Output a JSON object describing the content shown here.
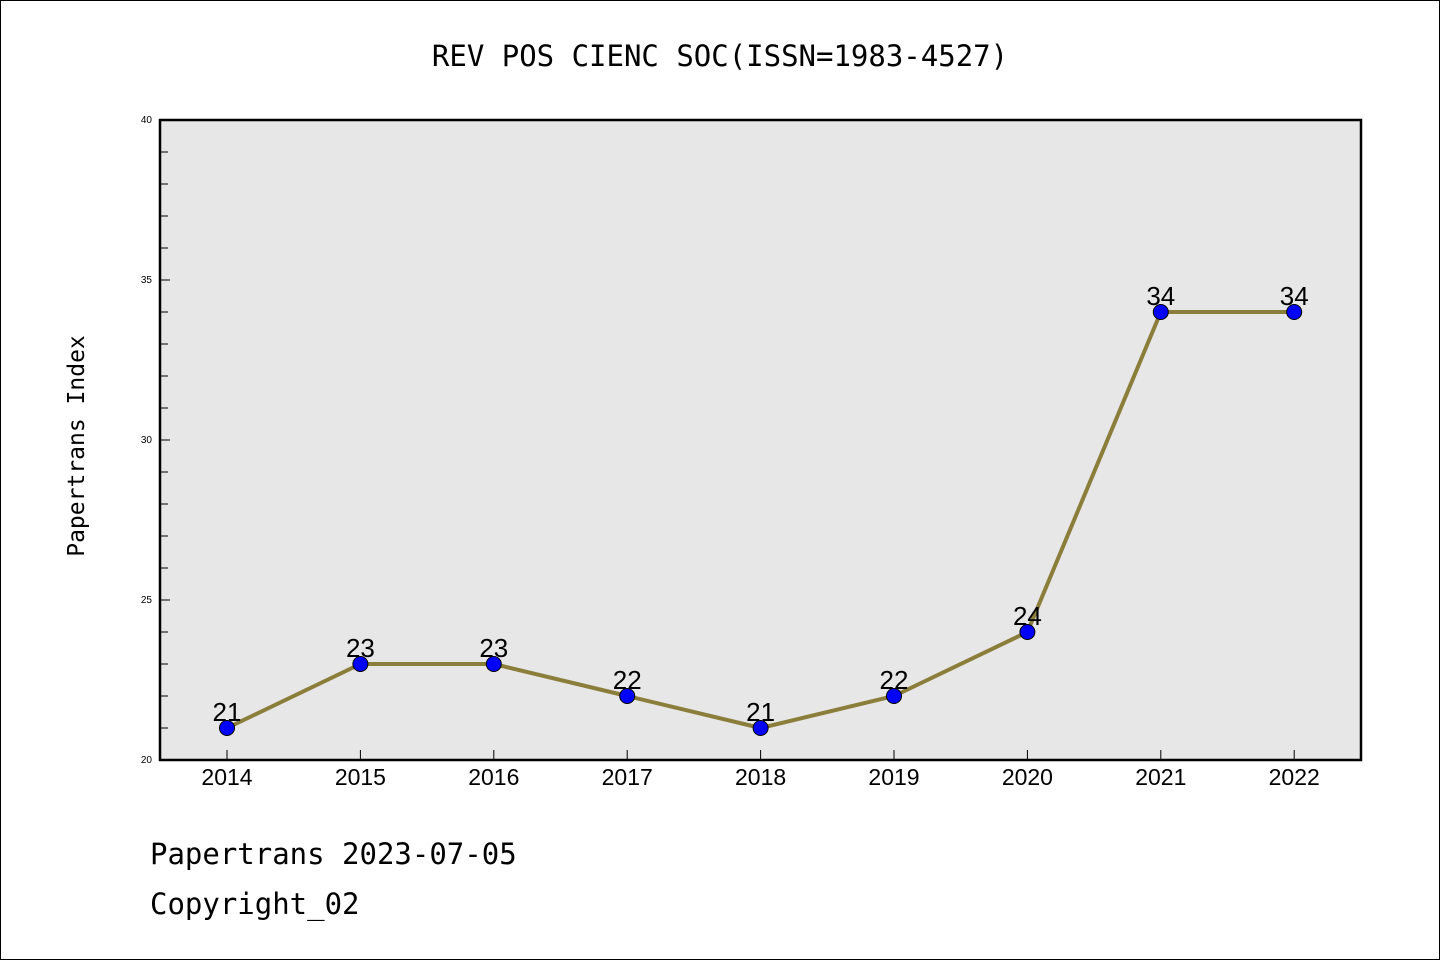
{
  "chart_data": {
    "type": "line",
    "title": "REV POS CIENC SOC(ISSN=1983-4527)",
    "ylabel": "Papertrans Index",
    "xlabel": "",
    "x": [
      "2014",
      "2015",
      "2016",
      "2017",
      "2018",
      "2019",
      "2020",
      "2021",
      "2022"
    ],
    "series": [
      {
        "values": [
          21,
          23,
          23,
          22,
          21,
          22,
          24,
          34,
          34
        ]
      }
    ],
    "ylim": [
      20,
      40
    ],
    "yticks": [
      "20",
      "25",
      "30",
      "35",
      "40"
    ],
    "grid": false,
    "legend": "none",
    "colors": {
      "line": "#8B7D3A",
      "marker": "#0000FF",
      "plot_background": "#E7E7E7"
    }
  },
  "footer": {
    "line1": "Papertrans 2023-07-05",
    "line2": "Copyright_02"
  }
}
